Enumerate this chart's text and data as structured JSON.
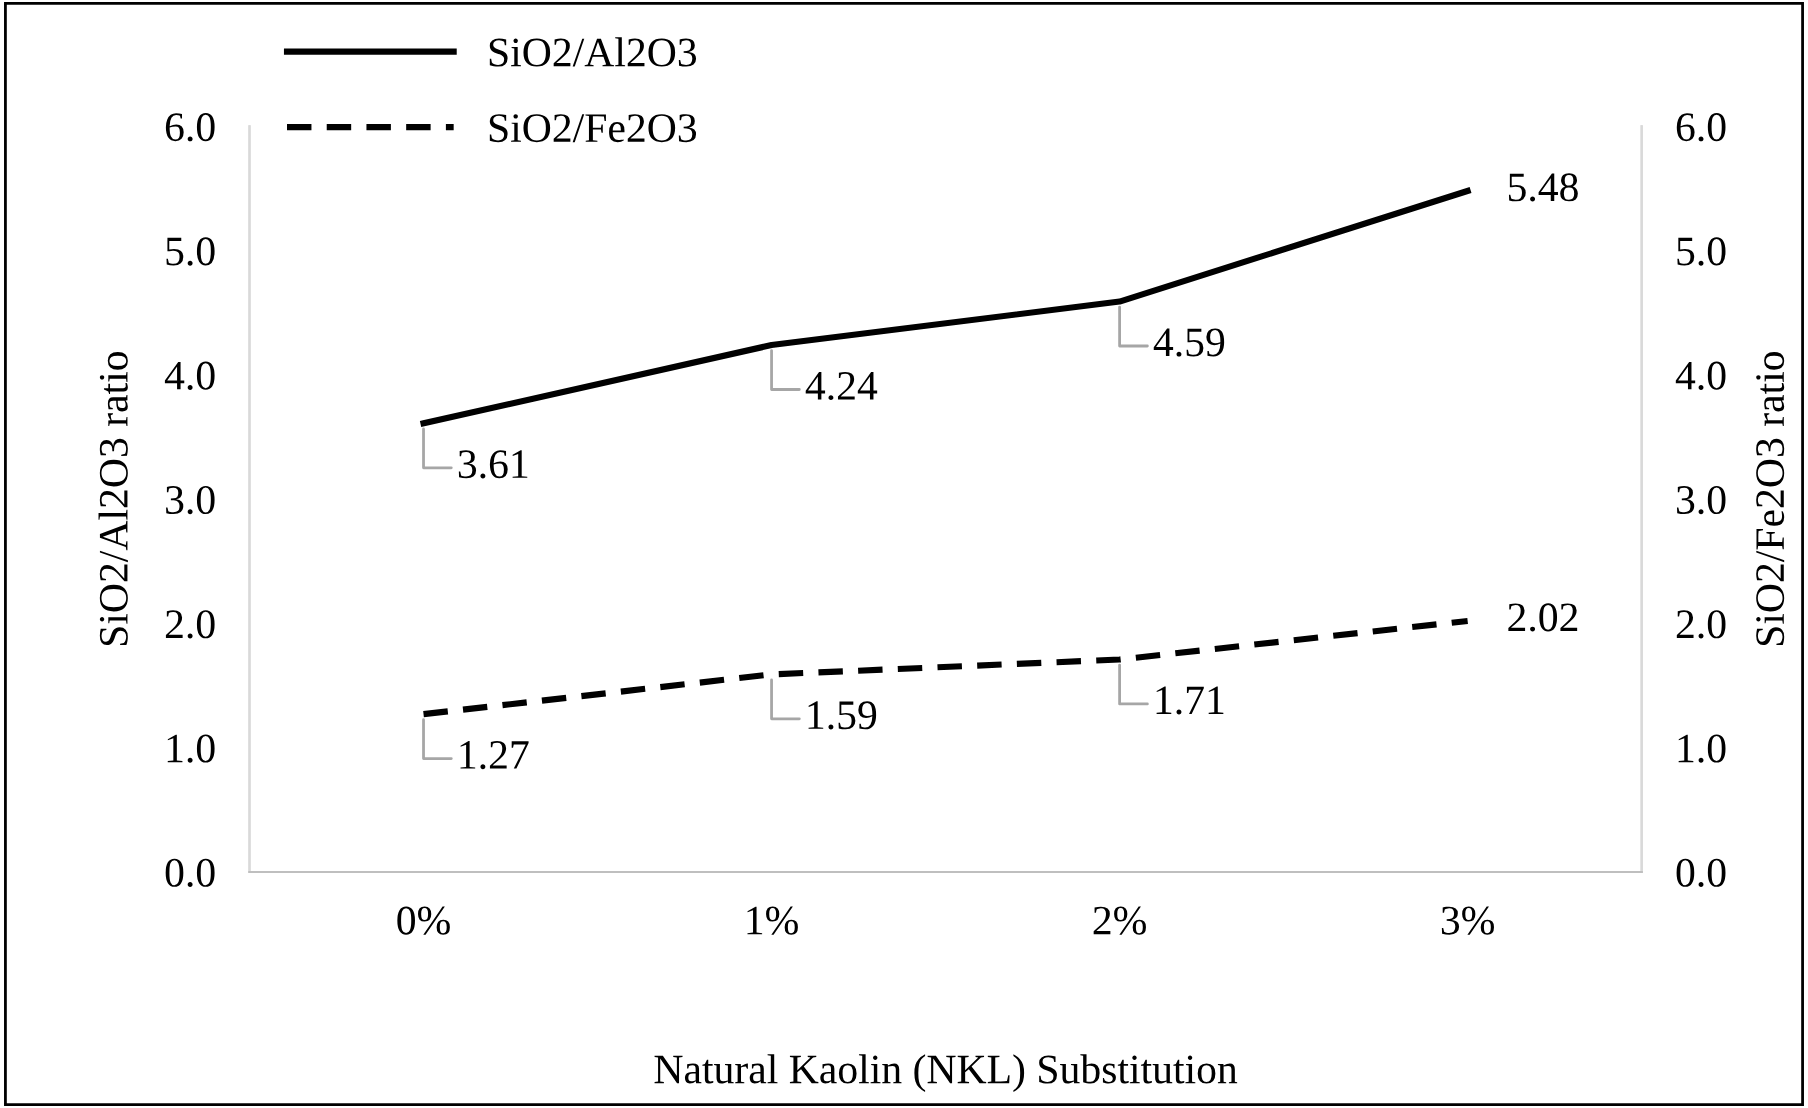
{
  "chart_data": {
    "type": "line",
    "xlabel": "Natural Kaolin (NKL) Substitution",
    "ylabel": "SiO2/Al2O3 ratio",
    "y2label": "SiO2/Fe2O3 ratio",
    "categories": [
      "0%",
      "1%",
      "2%",
      "3%"
    ],
    "series": [
      {
        "name": "SiO2/Al2O3",
        "color": "#000000",
        "line_style": "solid",
        "values": [
          3.61,
          4.24,
          4.59,
          5.48
        ]
      },
      {
        "name": "SiO2/Fe2O3",
        "color": "#000000",
        "line_style": "dashed",
        "values": [
          1.27,
          1.59,
          1.71,
          2.02
        ]
      }
    ],
    "ylim": [
      0,
      6
    ],
    "yticks": [
      {
        "value": 0,
        "label": "0.0"
      },
      {
        "value": 1,
        "label": "1.0"
      },
      {
        "value": 2,
        "label": "2.0"
      },
      {
        "value": 3,
        "label": "3.0"
      },
      {
        "value": 4,
        "label": "4.0"
      },
      {
        "value": 5,
        "label": "5.0"
      },
      {
        "value": 6,
        "label": "6.0"
      }
    ],
    "y2lim": [
      0,
      6
    ],
    "y2ticks": [
      {
        "value": 0,
        "label": "0.0"
      },
      {
        "value": 1,
        "label": "1.0"
      },
      {
        "value": 2,
        "label": "2.0"
      },
      {
        "value": 3,
        "label": "3.0"
      },
      {
        "value": 4,
        "label": "4.0"
      },
      {
        "value": 5,
        "label": "5.0"
      },
      {
        "value": 6,
        "label": "6.0"
      }
    ],
    "data_labels": true,
    "legend": "top left",
    "grid": false
  }
}
